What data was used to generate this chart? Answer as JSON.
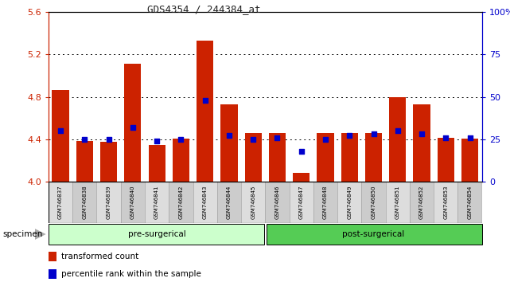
{
  "title": "GDS4354 / 244384_at",
  "samples": [
    "GSM746837",
    "GSM746838",
    "GSM746839",
    "GSM746840",
    "GSM746841",
    "GSM746842",
    "GSM746843",
    "GSM746844",
    "GSM746845",
    "GSM746846",
    "GSM746847",
    "GSM746848",
    "GSM746849",
    "GSM746850",
    "GSM746851",
    "GSM746852",
    "GSM746853",
    "GSM746854"
  ],
  "red_values": [
    4.865,
    4.385,
    4.375,
    5.11,
    4.345,
    4.405,
    5.33,
    4.73,
    4.455,
    4.455,
    4.08,
    4.455,
    4.455,
    4.455,
    4.8,
    4.73,
    4.415,
    4.405
  ],
  "blue_percentiles": [
    30,
    25,
    25,
    32,
    24,
    25,
    48,
    27,
    25,
    26,
    18,
    25,
    27,
    28,
    30,
    28,
    26,
    26
  ],
  "pre_surgical_count": 9,
  "post_surgical_count": 9,
  "ylim_left": [
    4.0,
    5.6
  ],
  "ylim_right": [
    0,
    100
  ],
  "yticks_left": [
    4.0,
    4.4,
    4.8,
    5.2,
    5.6
  ],
  "yticks_right": [
    0,
    25,
    50,
    75,
    100
  ],
  "bar_color": "#cc2200",
  "blue_color": "#0000cc",
  "bg_pre_color": "#ccffcc",
  "bg_post_color": "#55cc55",
  "label_row_color": "#cccccc",
  "legend_red_label": "transformed count",
  "legend_blue_label": "percentile rank within the sample",
  "pre_label": "pre-surgerical",
  "post_label": "post-surgerical",
  "grid_yticks": [
    4.4,
    4.8,
    5.2
  ],
  "bar_bottom": 4.0,
  "bar_width": 0.7
}
